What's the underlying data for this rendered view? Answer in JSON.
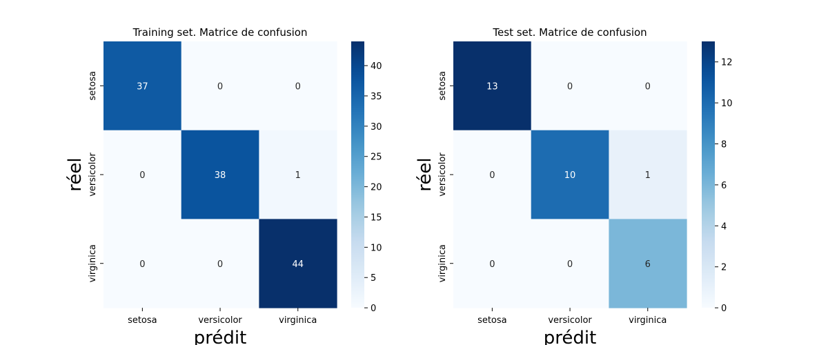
{
  "chart_data": [
    {
      "type": "heatmap",
      "title": "Training set. Matrice de confusion",
      "xlabel": "prédit",
      "ylabel": "réel",
      "x_categories": [
        "setosa",
        "versicolor",
        "virginica"
      ],
      "y_categories": [
        "setosa",
        "versicolor",
        "virginica"
      ],
      "values": [
        [
          37,
          0,
          0
        ],
        [
          0,
          38,
          1
        ],
        [
          0,
          0,
          44
        ]
      ],
      "colormap": "Blues",
      "colorbar": {
        "min": 0,
        "max": 44,
        "ticks": [
          0,
          5,
          10,
          15,
          20,
          25,
          30,
          35,
          40
        ]
      },
      "annotated": true
    },
    {
      "type": "heatmap",
      "title": "Test set. Matrice de confusion",
      "xlabel": "prédit",
      "ylabel": "réel",
      "x_categories": [
        "setosa",
        "versicolor",
        "virginica"
      ],
      "y_categories": [
        "setosa",
        "versicolor",
        "virginica"
      ],
      "values": [
        [
          13,
          0,
          0
        ],
        [
          0,
          10,
          1
        ],
        [
          0,
          0,
          6
        ]
      ],
      "colormap": "Blues",
      "colorbar": {
        "min": 0,
        "max": 13,
        "ticks": [
          0,
          2,
          4,
          6,
          8,
          10,
          12
        ]
      },
      "annotated": true
    }
  ]
}
